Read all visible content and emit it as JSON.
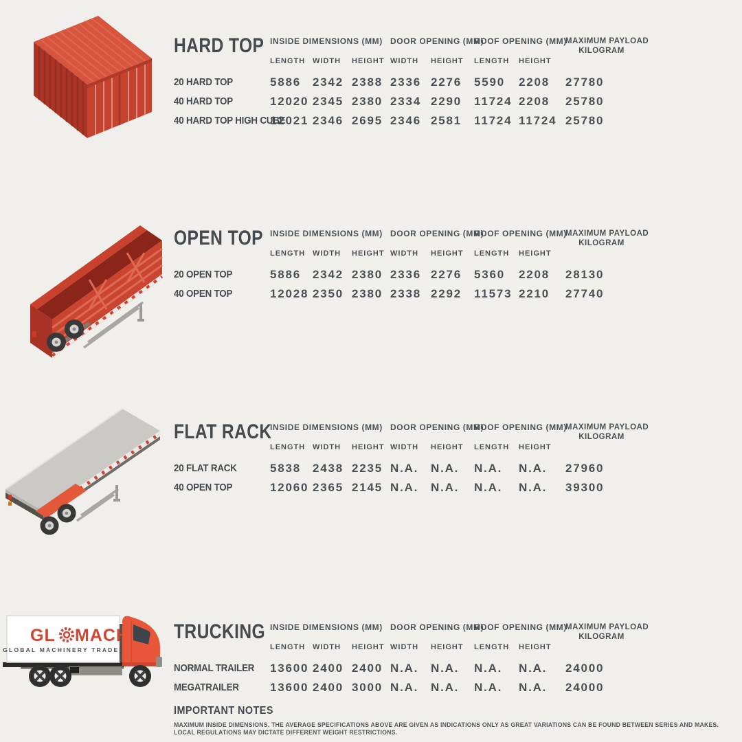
{
  "page": {
    "background_color": "#f0efeb",
    "text_color": "#4b5054",
    "accent_red": "#c9402d",
    "truck_orange": "#e8573a"
  },
  "table_headers": {
    "group_inside": "INSIDE DIMENSIONS (MM)",
    "group_door": "DOOR OPENING (MM)",
    "group_roof": "ROOF OPENING (MM)",
    "group_payload_line1": "MAXIMUM PAYLOAD",
    "group_payload_line2": "KILOGRAM",
    "sub": [
      "LENGTH",
      "WIDTH",
      "HEIGHT",
      "WIDTH",
      "HEIGHT",
      "LENGTH",
      "HEIGHT"
    ]
  },
  "illustrations": {
    "hard_top": "isometric-red-shipping-container",
    "open_top": "isometric-red-open-top-trailer",
    "flat_rack": "isometric-gray-flat-rack-trailer",
    "trucking": "side-view-box-truck-with-glomacht-logo"
  },
  "sections": [
    {
      "title": "HARD TOP",
      "rows": [
        {
          "label": "20 HARD TOP",
          "values": [
            "5886",
            "2342",
            "2388",
            "2336",
            "2276",
            "5590",
            "2208",
            "27780"
          ]
        },
        {
          "label": "40 HARD TOP",
          "values": [
            "12020",
            "2345",
            "2380",
            "2334",
            "2290",
            "11724",
            "2208",
            "25780"
          ]
        },
        {
          "label": "40 HARD TOP HIGH CUBE",
          "values": [
            "12021",
            "2346",
            "2695",
            "2346",
            "2581",
            "11724",
            "11724",
            "25780"
          ]
        }
      ]
    },
    {
      "title": "OPEN TOP",
      "rows": [
        {
          "label": "20 OPEN TOP",
          "values": [
            "5886",
            "2342",
            "2380",
            "2336",
            "2276",
            "5360",
            "2208",
            "28130"
          ]
        },
        {
          "label": "40 OPEN TOP",
          "values": [
            "12028",
            "2350",
            "2380",
            "2338",
            "2292",
            "11573",
            "2210",
            "27740"
          ]
        }
      ]
    },
    {
      "title": "FLAT RACK",
      "rows": [
        {
          "label": "20 FLAT RACK",
          "values": [
            "5838",
            "2438",
            "2235",
            "N.A.",
            "N.A.",
            "N.A.",
            "N.A.",
            "27960"
          ]
        },
        {
          "label": "40 OPEN TOP",
          "values": [
            "12060",
            "2365",
            "2145",
            "N.A.",
            "N.A.",
            "N.A.",
            "N.A.",
            "39300"
          ]
        }
      ]
    },
    {
      "title": "TRUCKING",
      "rows": [
        {
          "label": "NORMAL TRAILER",
          "values": [
            "13600",
            "2400",
            "2400",
            "N.A.",
            "N.A.",
            "N.A.",
            "N.A.",
            "24000"
          ]
        },
        {
          "label": "MEGATRAILER",
          "values": [
            "13600",
            "2400",
            "3000",
            "N.A.",
            "N.A.",
            "N.A.",
            "N.A.",
            "24000"
          ]
        }
      ]
    }
  ],
  "branding": {
    "logo_pre": "GL",
    "logo_post": "MACHT",
    "logo_subtitle": "GLOBAL MACHINERY TRADER",
    "logo_color": "#cf4631"
  },
  "notes": {
    "title": "IMPORTANT NOTES",
    "lines": [
      "MAXIMUM INSIDE DIMENSIONS. THE AVERAGE SPECIFICATIONS ABOVE ARE GIVEN AS INDICATIONS ONLY AS GREAT VARIATIONS CAN BE FOUND BETWEEN SERIES AND MAKES.",
      "LOCAL REGULATIONS MAY DICTATE DIFFERENT WEIGHT RESTRICTIONS."
    ]
  }
}
